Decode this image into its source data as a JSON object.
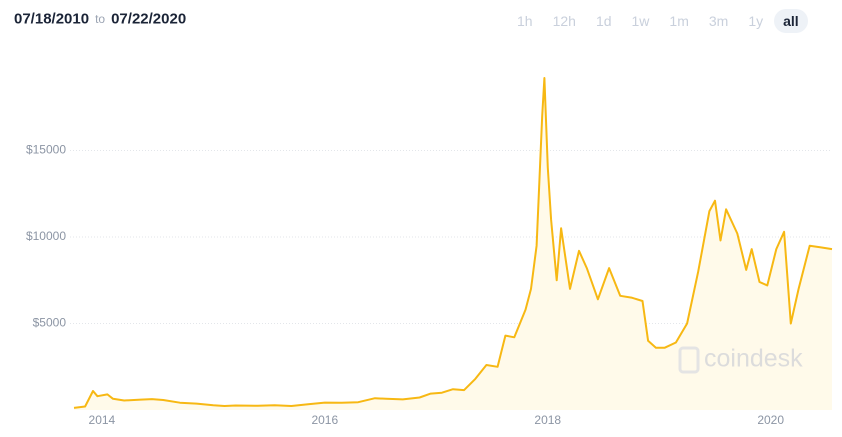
{
  "header": {
    "from": "07/18/2010",
    "to_label": "to",
    "to": "07/22/2020"
  },
  "ranges": [
    "1h",
    "12h",
    "1d",
    "1w",
    "1m",
    "3m",
    "1y",
    "all"
  ],
  "selected_range": 7,
  "watermark": "coindesk",
  "chart_data": {
    "type": "line",
    "color": "#f7b813",
    "fill": "#fffaea",
    "x": [
      2013.75,
      2013.85,
      2013.92,
      2013.96,
      2014.05,
      2014.1,
      2014.2,
      2014.35,
      2014.45,
      2014.55,
      2014.7,
      2014.85,
      2015.0,
      2015.1,
      2015.2,
      2015.4,
      2015.55,
      2015.7,
      2015.85,
      2016.0,
      2016.15,
      2016.3,
      2016.45,
      2016.55,
      2016.7,
      2016.85,
      2016.95,
      2017.05,
      2017.15,
      2017.25,
      2017.35,
      2017.45,
      2017.55,
      2017.62,
      2017.7,
      2017.8,
      2017.85,
      2017.9,
      2017.95,
      2017.97,
      2018.0,
      2018.03,
      2018.08,
      2018.12,
      2018.2,
      2018.28,
      2018.35,
      2018.45,
      2018.55,
      2018.65,
      2018.75,
      2018.85,
      2018.9,
      2018.97,
      2019.05,
      2019.15,
      2019.25,
      2019.35,
      2019.45,
      2019.5,
      2019.55,
      2019.6,
      2019.7,
      2019.78,
      2019.83,
      2019.9,
      2019.97,
      2020.05,
      2020.12,
      2020.18,
      2020.25,
      2020.35,
      2020.45,
      2020.55
    ],
    "values": [
      120,
      200,
      1100,
      800,
      900,
      650,
      550,
      600,
      630,
      580,
      420,
      370,
      280,
      230,
      260,
      240,
      280,
      230,
      330,
      430,
      420,
      450,
      680,
      650,
      610,
      720,
      950,
      1000,
      1200,
      1150,
      1800,
      2600,
      2500,
      4300,
      4200,
      5800,
      7000,
      9500,
      17000,
      19190,
      14000,
      11000,
      7500,
      10500,
      7000,
      9200,
      8200,
      6400,
      8200,
      6600,
      6500,
      6300,
      4000,
      3600,
      3600,
      3900,
      5000,
      8000,
      11500,
      12100,
      9800,
      11600,
      10200,
      8100,
      9300,
      7400,
      7200,
      9300,
      10300,
      5000,
      7000,
      9500,
      9400,
      9300
    ],
    "xlim": [
      2013.75,
      2020.55
    ],
    "ylim": [
      0,
      20000
    ],
    "xticks": [
      2014,
      2016,
      2018,
      2020
    ],
    "yticks": [
      {
        "value": 5000,
        "label": "$5000"
      },
      {
        "value": 10000,
        "label": "$10000"
      },
      {
        "value": 15000,
        "label": "$15000"
      }
    ],
    "grid": true
  }
}
